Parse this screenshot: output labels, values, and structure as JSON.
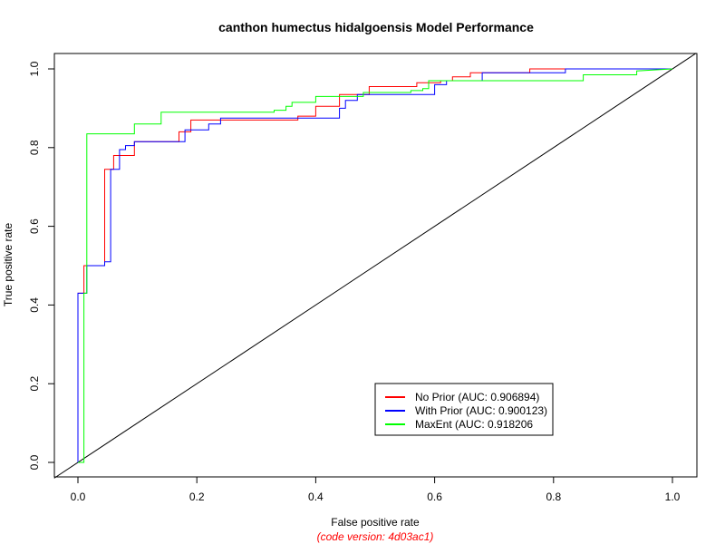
{
  "chart_data": {
    "type": "line",
    "title": "canthon humectus hidalgoensis Model Performance",
    "xlabel": "False positive rate",
    "ylabel": "True positive rate",
    "footnote": "(code version: 4d03ac1)",
    "footnote_color": "#ff0000",
    "xlim": [
      0,
      1
    ],
    "ylim": [
      0,
      1
    ],
    "x_ticks": [
      "0.0",
      "0.2",
      "0.4",
      "0.6",
      "0.8",
      "1.0"
    ],
    "y_ticks": [
      "0.0",
      "0.2",
      "0.4",
      "0.6",
      "0.8",
      "1.0"
    ],
    "grid": false,
    "legend_position": "bottom-center",
    "reference_line": {
      "x": [
        0,
        1
      ],
      "y": [
        0,
        1
      ],
      "color": "#000000"
    },
    "series": [
      {
        "name": "No Prior (AUC: 0.906894)",
        "color": "#ff0000",
        "x": [
          0.0,
          0.0,
          0.01,
          0.01,
          0.045,
          0.045,
          0.06,
          0.06,
          0.07,
          0.07,
          0.095,
          0.095,
          0.17,
          0.17,
          0.19,
          0.19,
          0.37,
          0.37,
          0.4,
          0.4,
          0.44,
          0.44,
          0.49,
          0.49,
          0.57,
          0.57,
          0.61,
          0.61,
          0.63,
          0.63,
          0.66,
          0.66,
          0.68,
          0.68,
          0.76,
          0.76,
          1.0
        ],
        "y": [
          0.0,
          0.43,
          0.43,
          0.5,
          0.5,
          0.745,
          0.745,
          0.78,
          0.78,
          0.78,
          0.78,
          0.815,
          0.815,
          0.84,
          0.84,
          0.87,
          0.87,
          0.88,
          0.88,
          0.905,
          0.905,
          0.935,
          0.935,
          0.955,
          0.955,
          0.965,
          0.965,
          0.97,
          0.97,
          0.98,
          0.98,
          0.99,
          0.99,
          0.99,
          0.99,
          1.0,
          1.0
        ]
      },
      {
        "name": "With Prior (AUC: 0.900123)",
        "color": "#0000ff",
        "x": [
          0.0,
          0.0,
          0.015,
          0.015,
          0.045,
          0.045,
          0.055,
          0.055,
          0.07,
          0.07,
          0.08,
          0.08,
          0.095,
          0.095,
          0.18,
          0.18,
          0.22,
          0.22,
          0.24,
          0.24,
          0.44,
          0.44,
          0.45,
          0.45,
          0.47,
          0.47,
          0.6,
          0.6,
          0.62,
          0.62,
          0.68,
          0.68,
          0.82,
          0.82,
          0.97,
          0.97,
          1.0
        ],
        "y": [
          0.0,
          0.43,
          0.43,
          0.5,
          0.5,
          0.51,
          0.51,
          0.745,
          0.745,
          0.795,
          0.795,
          0.805,
          0.805,
          0.815,
          0.815,
          0.845,
          0.845,
          0.86,
          0.86,
          0.875,
          0.875,
          0.9,
          0.9,
          0.92,
          0.92,
          0.935,
          0.935,
          0.96,
          0.96,
          0.97,
          0.97,
          0.99,
          0.99,
          1.0,
          1.0,
          1.0,
          1.0
        ]
      },
      {
        "name": "MaxEnt (AUC: 0.918206",
        "color": "#00ff00",
        "x": [
          0.0,
          0.01,
          0.01,
          0.015,
          0.015,
          0.095,
          0.095,
          0.14,
          0.14,
          0.33,
          0.33,
          0.35,
          0.35,
          0.36,
          0.36,
          0.4,
          0.4,
          0.48,
          0.48,
          0.56,
          0.56,
          0.58,
          0.58,
          0.59,
          0.59,
          0.85,
          0.85,
          0.94,
          0.94,
          1.0
        ],
        "y": [
          0.0,
          0.0,
          0.43,
          0.43,
          0.835,
          0.835,
          0.86,
          0.86,
          0.89,
          0.89,
          0.895,
          0.895,
          0.905,
          0.905,
          0.915,
          0.915,
          0.93,
          0.93,
          0.94,
          0.94,
          0.945,
          0.945,
          0.95,
          0.95,
          0.97,
          0.97,
          0.985,
          0.985,
          0.995,
          1.0
        ]
      }
    ]
  }
}
